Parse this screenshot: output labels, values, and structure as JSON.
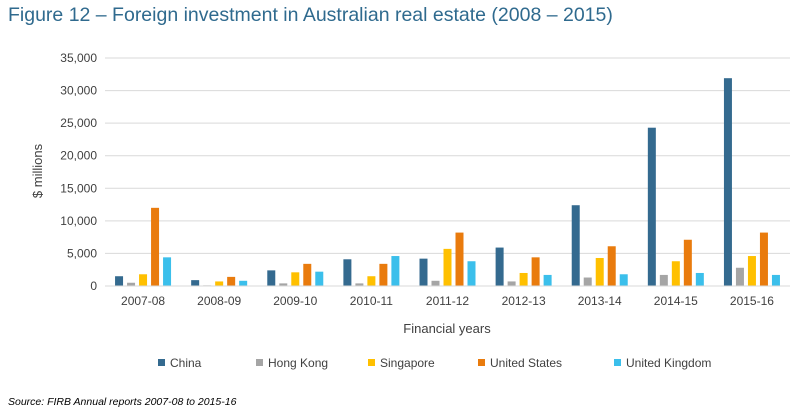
{
  "title": "Figure 12 – Foreign investment in Australian real estate (2008 – 2015)",
  "source": "Source: FIRB Annual reports 2007-08 to 2015-16",
  "chart_data": {
    "type": "bar",
    "xlabel": "Financial years",
    "ylabel": "$ millions",
    "ylim": [
      0,
      35000
    ],
    "yticks": [
      0,
      5000,
      10000,
      15000,
      20000,
      25000,
      30000,
      35000
    ],
    "ytick_labels": [
      "0",
      "5,000",
      "10,000",
      "15,000",
      "20,000",
      "25,000",
      "30,000",
      "35,000"
    ],
    "grid": true,
    "legend_position": "bottom",
    "categories": [
      "2007-08",
      "2008-09",
      "2009-10",
      "2010-11",
      "2011-12",
      "2012-13",
      "2013-14",
      "2014-15",
      "2015-16"
    ],
    "series": [
      {
        "name": "China",
        "color": "#346a8f",
        "values": [
          1500,
          900,
          2400,
          4100,
          4200,
          5900,
          12400,
          24300,
          31900
        ]
      },
      {
        "name": "Hong Kong",
        "color": "#a5a5a5",
        "values": [
          500,
          100,
          400,
          400,
          800,
          700,
          1300,
          1700,
          2800
        ]
      },
      {
        "name": "Singapore",
        "color": "#ffc000",
        "values": [
          1800,
          700,
          2100,
          1500,
          5700,
          2000,
          4300,
          3800,
          4600
        ]
      },
      {
        "name": "United States",
        "color": "#e97b0d",
        "values": [
          12000,
          1400,
          3400,
          3400,
          8200,
          4400,
          6100,
          7100,
          8200
        ]
      },
      {
        "name": "United Kingdom",
        "color": "#3bbfeb",
        "values": [
          4400,
          800,
          2200,
          4600,
          3800,
          1700,
          1800,
          2000,
          1700
        ]
      }
    ]
  }
}
